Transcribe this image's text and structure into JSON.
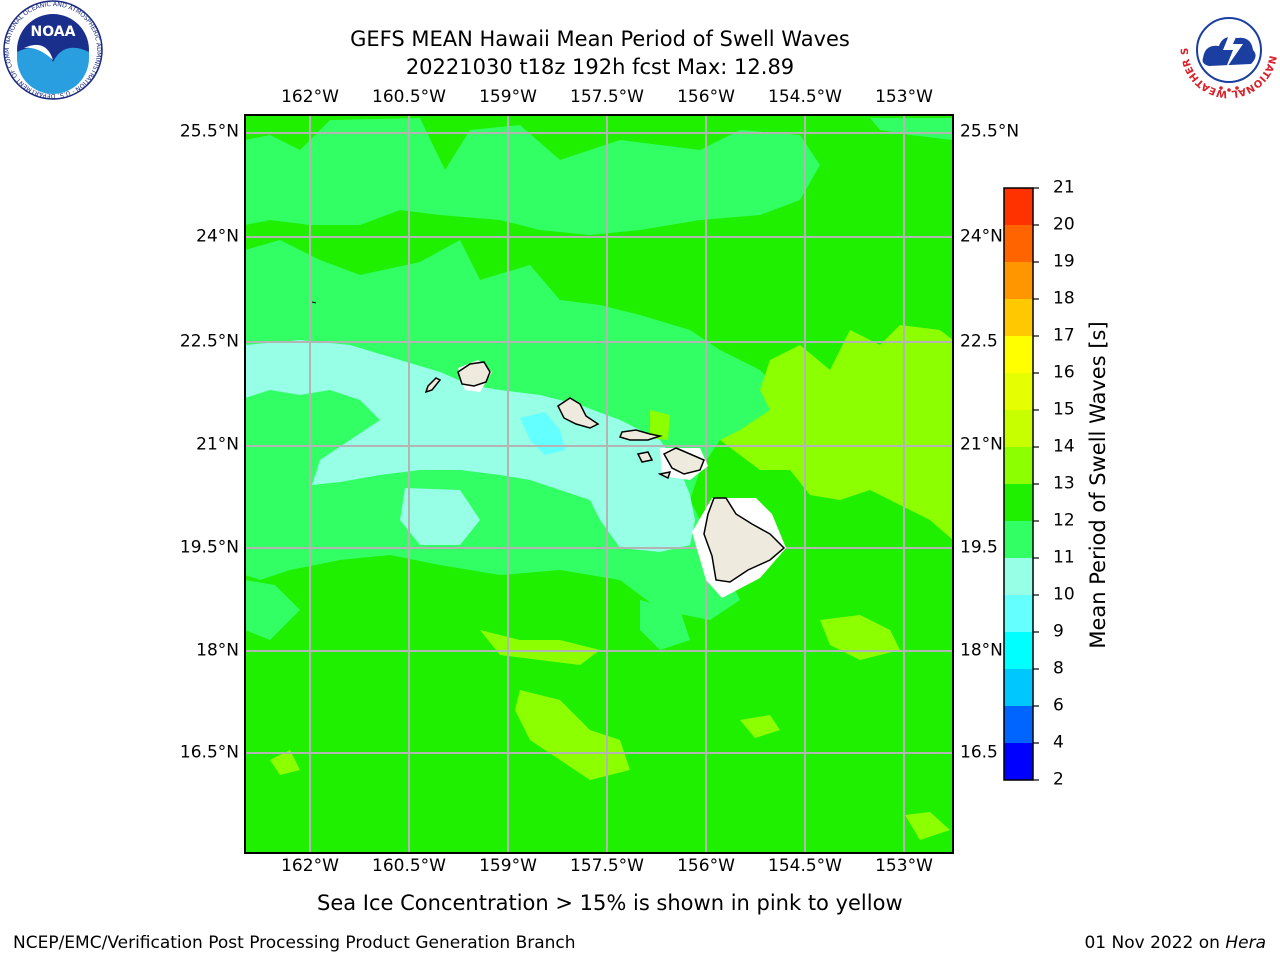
{
  "header": {
    "title": "GEFS MEAN Hawaii Mean Period of Swell Waves",
    "subtitle": "20221030 t18z 192h fcst   Max: 12.89"
  },
  "logos": {
    "left_agency": "NOAA",
    "left_ring_text": "NATIONAL OCEANIC AND ATMOSPHERIC ADMINISTRATION · U.S. DEPARTMENT OF COMMERCE",
    "right_agency": "NATIONAL WEATHER SERVICE"
  },
  "map": {
    "lon_ticks": [
      "162°W",
      "160.5°W",
      "159°W",
      "157.5°W",
      "156°W",
      "154.5°W",
      "153°W"
    ],
    "lat_ticks_left": [
      "25.5°N",
      "24°N",
      "22.5°N",
      "21°N",
      "19.5°N",
      "18°N",
      "16.5°N"
    ],
    "lat_ticks_right": [
      "25.5°N",
      "24°N",
      "22.5",
      "21°N",
      "19.5",
      "18°N",
      "16.5"
    ]
  },
  "colorbar": {
    "title": "Mean Period of Swell Waves [s]",
    "levels": [
      "2",
      "4",
      "6",
      "8",
      "9",
      "10",
      "11",
      "12",
      "13",
      "14",
      "15",
      "16",
      "17",
      "18",
      "19",
      "20",
      "21"
    ],
    "colors": [
      "#0000ff",
      "#0064ff",
      "#00c8ff",
      "#00ffff",
      "#64ffff",
      "#96ffe6",
      "#32ff64",
      "#1ef000",
      "#8cff00",
      "#c8ff00",
      "#e6ff00",
      "#ffff00",
      "#ffc800",
      "#ff9600",
      "#ff6400",
      "#ff3200",
      "#ff0000"
    ]
  },
  "note": "Sea Ice Concentration > 15% is shown in pink to yellow",
  "footer": {
    "left": "NCEP/EMC/Verification Post Processing Product Generation Branch",
    "date": "01 Nov 2022 on ",
    "host": "Hera"
  }
}
